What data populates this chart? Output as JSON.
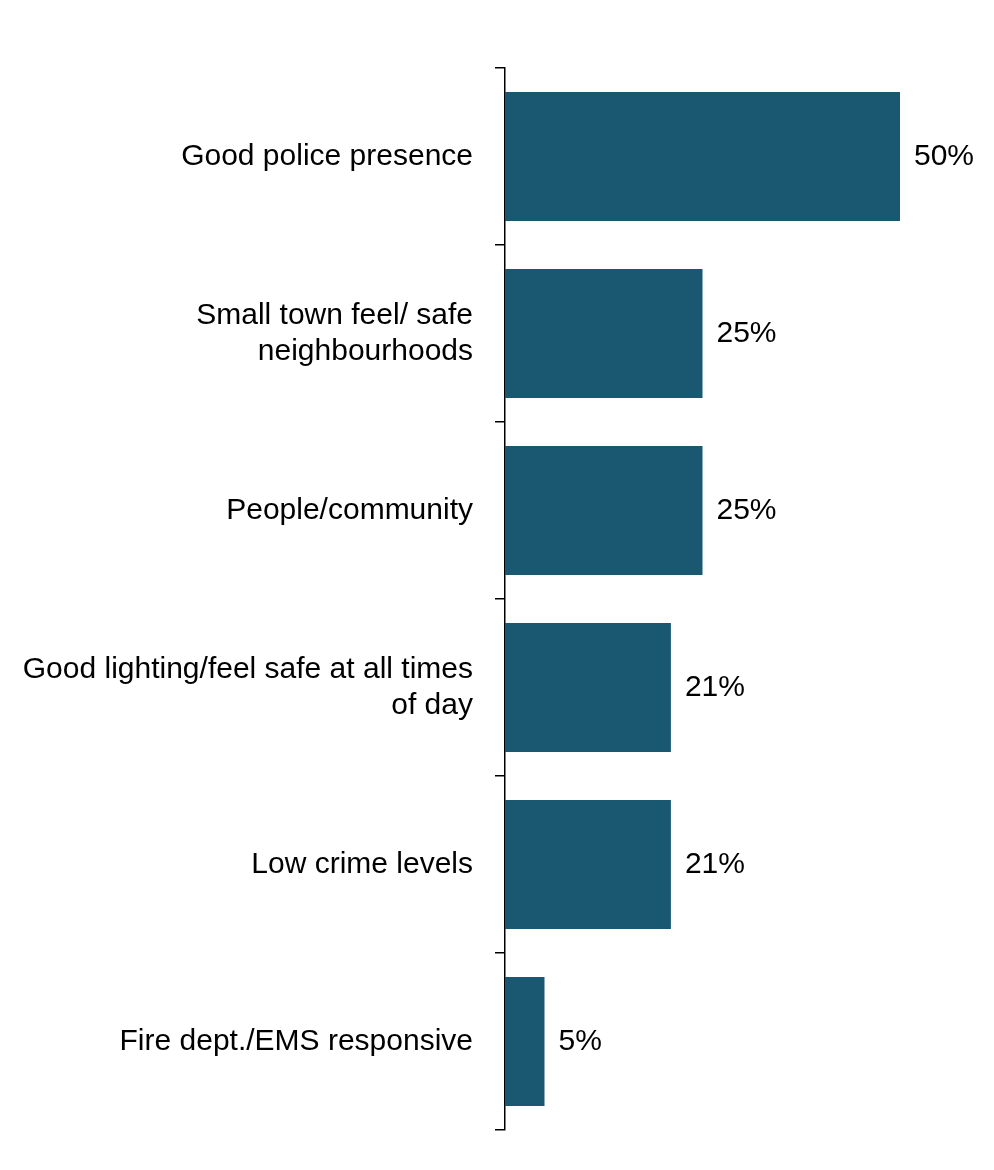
{
  "chart_data": {
    "type": "bar",
    "orientation": "horizontal",
    "categories": [
      "Good police presence",
      "Small town feel/ safe neighbourhoods",
      "People/community",
      "Good lighting/feel safe at all times of day",
      "Low crime levels",
      "Fire dept./EMS responsive"
    ],
    "values": [
      50,
      25,
      25,
      21,
      21,
      5
    ],
    "value_labels": [
      "50%",
      "25%",
      "25%",
      "21%",
      "21%",
      "5%"
    ],
    "color": "#1a5872",
    "legend": false,
    "grid": false
  }
}
